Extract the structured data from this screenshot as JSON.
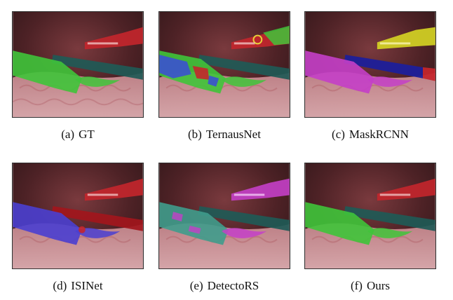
{
  "figure": {
    "panels": [
      {
        "id": "a",
        "tag": "(a)",
        "label": "GT",
        "overlays": {
          "shaft_dark": "#1f5a56",
          "tool_left": "#3fc43a",
          "tool_top_right": "#c4262c",
          "clamp_left": "#3fc43a"
        }
      },
      {
        "id": "b",
        "tag": "(b)",
        "label": "TernausNet",
        "overlays": {
          "shaft_dark": "#1f5a56",
          "tool_left_a": "#3fc43a",
          "tool_left_b": "#3b56c8",
          "tool_left_c": "#c4262c",
          "tool_top_right": "#c4262c",
          "tool_top_right_b": "#3fc43a",
          "clamp_left": "#3fc43a"
        }
      },
      {
        "id": "c",
        "tag": "(c)",
        "label": "MaskRCNN",
        "overlays": {
          "shaft_dark": "#1d1f9a",
          "shaft_end": "#c4262c",
          "tool_left": "#c43fc8",
          "tool_top_right": "#d6d624",
          "clamp_left": "#c43fc8"
        }
      },
      {
        "id": "d",
        "tag": "(d)",
        "label": "ISINet",
        "overlays": {
          "shaft_dark": "#a2161c",
          "tool_left": "#4a3fd0",
          "tool_top_right": "#c4262c",
          "clamp_left": "#4a3fd0"
        }
      },
      {
        "id": "e",
        "tag": "(e)",
        "label": "DetectoRS",
        "overlays": {
          "shaft_dark": "#1f5a56",
          "tool_left": "#3f9c8c",
          "tool_left_b": "#c43fc8",
          "tool_top_right": "#c43fc8",
          "clamp_left": "#c43fc8"
        }
      },
      {
        "id": "f",
        "tag": "(f)",
        "label": "Ours",
        "overlays": {
          "shaft_dark": "#1f5a56",
          "tool_left": "#3fc43a",
          "tool_top_right": "#c4262c",
          "clamp_left": "#3fc43a"
        }
      }
    ]
  }
}
